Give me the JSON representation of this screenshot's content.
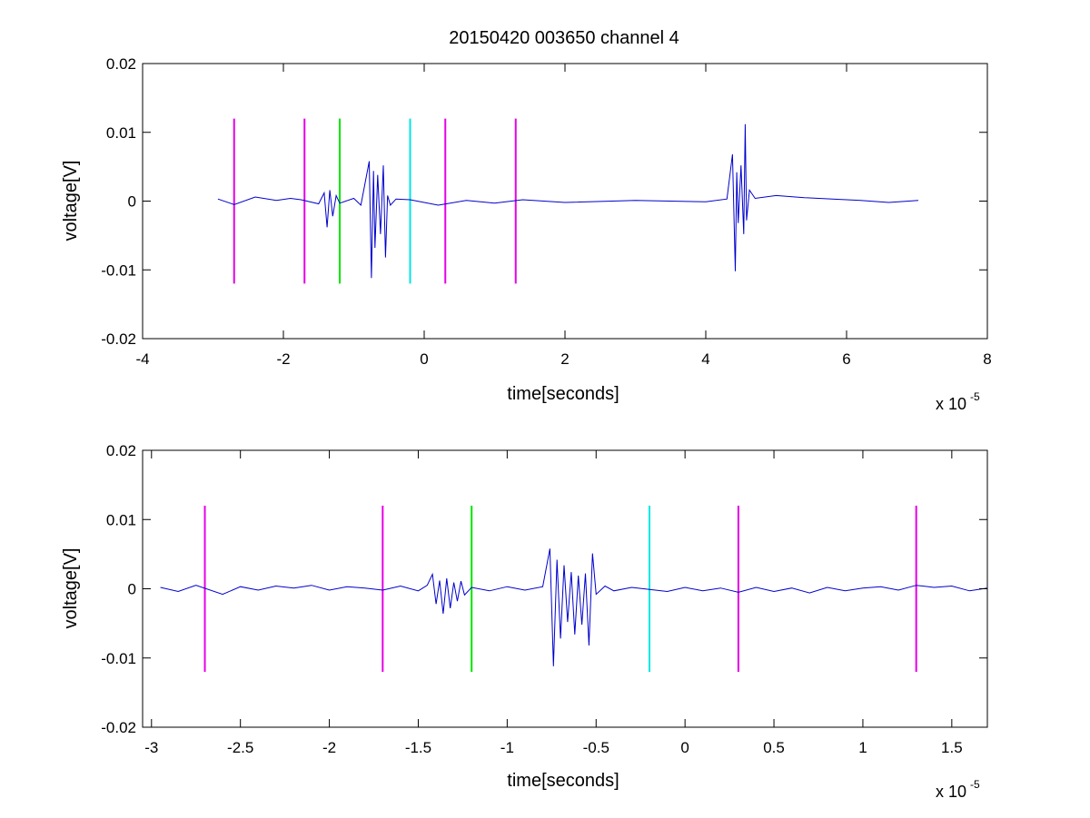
{
  "chart_data": [
    {
      "type": "line",
      "title": "20150420 003650 channel 4",
      "xlabel": "time[seconds]",
      "ylabel": "voltage[V]",
      "x_multiplier": "x 10",
      "x_exponent": "-5",
      "xlim": [
        -4,
        8
      ],
      "ylim": [
        -0.02,
        0.02
      ],
      "x_ticks": [
        -4,
        -2,
        0,
        2,
        4,
        6,
        8
      ],
      "x_tick_labels": [
        "-4",
        "-2",
        "0",
        "2",
        "4",
        "6",
        "8"
      ],
      "y_ticks": [
        0.02,
        0.01,
        0,
        -0.01,
        -0.02
      ],
      "y_tick_labels": [
        "0.02",
        "0.01",
        "0",
        "-0.01",
        "-0.02"
      ],
      "grid": false,
      "signal_color": "#0000cc",
      "series": [
        {
          "x": [
            -2.93,
            -2.7,
            -2.4,
            -2.1,
            -1.9,
            -1.75,
            -1.5,
            -1.42,
            -1.38,
            -1.34,
            -1.3,
            -1.25,
            -1.2,
            -1.0,
            -0.9,
            -0.78,
            -0.75,
            -0.72,
            -0.7,
            -0.66,
            -0.62,
            -0.58,
            -0.55,
            -0.52,
            -0.48,
            -0.4,
            -0.2,
            0.2,
            0.6,
            1.0,
            1.4,
            2.0,
            3.0,
            4.0,
            4.3,
            4.38,
            4.42,
            4.44,
            4.46,
            4.5,
            4.54,
            4.56,
            4.58,
            4.62,
            4.7,
            5.0,
            5.4,
            5.8,
            6.2,
            6.6,
            7.02
          ],
          "y": [
            0.0003,
            -0.0005,
            0.0006,
            0.0001,
            0.0004,
            0.0002,
            -0.0004,
            0.0012,
            -0.0038,
            0.0016,
            -0.0022,
            0.0008,
            -0.0003,
            0.0004,
            -0.0006,
            0.0058,
            -0.0112,
            0.0044,
            -0.0068,
            0.0038,
            -0.0048,
            0.0052,
            -0.0082,
            0.0008,
            -0.0006,
            0.0003,
            0.0002,
            -0.0006,
            0.0001,
            -0.0003,
            0.0002,
            -0.0002,
            0.0001,
            -0.0001,
            0.0003,
            0.0068,
            -0.0102,
            0.0042,
            -0.0032,
            0.0052,
            -0.0048,
            0.0112,
            -0.0028,
            0.0016,
            0.0004,
            0.0008,
            0.0005,
            0.0003,
            0.0001,
            -0.0002,
            0.0001
          ]
        }
      ],
      "markers": [
        {
          "x": -2.7,
          "color": "#e600e6"
        },
        {
          "x": -1.7,
          "color": "#e600e6"
        },
        {
          "x": -1.2,
          "color": "#00e600"
        },
        {
          "x": -0.2,
          "color": "#00e6e6"
        },
        {
          "x": 0.3,
          "color": "#e600e6"
        },
        {
          "x": 1.3,
          "color": "#e600e6"
        }
      ],
      "marker_range": [
        -0.012,
        0.012
      ]
    },
    {
      "type": "line",
      "title": "",
      "xlabel": "time[seconds]",
      "ylabel": "voltage[V]",
      "x_multiplier": "x 10",
      "x_exponent": "-5",
      "xlim": [
        -3.05,
        1.7
      ],
      "ylim": [
        -0.02,
        0.02
      ],
      "x_ticks": [
        -3,
        -2.5,
        -2,
        -1.5,
        -1,
        -0.5,
        0,
        0.5,
        1,
        1.5
      ],
      "x_tick_labels": [
        "-3",
        "-2.5",
        "-2",
        "-1.5",
        "-1",
        "-0.5",
        "0",
        "0.5",
        "1",
        "1.5"
      ],
      "y_ticks": [
        0.02,
        0.01,
        0,
        -0.01,
        -0.02
      ],
      "y_tick_labels": [
        "0.02",
        "0.01",
        "0",
        "-0.01",
        "-0.02"
      ],
      "grid": false,
      "signal_color": "#0000cc",
      "series": [
        {
          "x": [
            -2.95,
            -2.85,
            -2.75,
            -2.6,
            -2.5,
            -2.4,
            -2.3,
            -2.2,
            -2.1,
            -2.0,
            -1.9,
            -1.8,
            -1.7,
            -1.6,
            -1.5,
            -1.45,
            -1.42,
            -1.4,
            -1.38,
            -1.36,
            -1.34,
            -1.32,
            -1.3,
            -1.28,
            -1.26,
            -1.24,
            -1.2,
            -1.1,
            -1.0,
            -0.9,
            -0.8,
            -0.76,
            -0.74,
            -0.72,
            -0.7,
            -0.68,
            -0.66,
            -0.64,
            -0.62,
            -0.6,
            -0.58,
            -0.56,
            -0.54,
            -0.52,
            -0.5,
            -0.45,
            -0.4,
            -0.3,
            -0.2,
            -0.1,
            0.0,
            0.1,
            0.2,
            0.3,
            0.4,
            0.5,
            0.6,
            0.7,
            0.8,
            0.9,
            1.0,
            1.1,
            1.2,
            1.3,
            1.4,
            1.5,
            1.6,
            1.7
          ],
          "y": [
            0.0002,
            -0.0004,
            0.0005,
            -0.0008,
            0.0003,
            -0.0002,
            0.0004,
            0.0001,
            0.0005,
            -0.0002,
            0.0003,
            0.0001,
            -0.0002,
            0.0004,
            -0.0003,
            0.0005,
            0.0021,
            -0.0022,
            0.0012,
            -0.0036,
            0.0015,
            -0.0028,
            0.0009,
            -0.0018,
            0.0011,
            -0.0009,
            0.0002,
            -0.0003,
            0.0003,
            -0.0002,
            0.0003,
            0.0058,
            -0.0112,
            0.0042,
            -0.0072,
            0.0034,
            -0.0048,
            0.0024,
            -0.0066,
            0.0019,
            -0.0052,
            0.0022,
            -0.0082,
            0.0051,
            -0.0008,
            0.0004,
            -0.0003,
            0.0002,
            -0.0001,
            -0.0004,
            0.0002,
            -0.0003,
            0.0001,
            -0.0005,
            0.0002,
            -0.0004,
            0.0001,
            -0.0006,
            0.0002,
            -0.0003,
            0.0001,
            0.0003,
            -0.0002,
            0.0005,
            0.0002,
            0.0004,
            -0.0003,
            0.0001
          ]
        }
      ],
      "markers": [
        {
          "x": -2.7,
          "color": "#e600e6"
        },
        {
          "x": -1.7,
          "color": "#e600e6"
        },
        {
          "x": -1.2,
          "color": "#00e600"
        },
        {
          "x": -0.2,
          "color": "#00e6e6"
        },
        {
          "x": 0.3,
          "color": "#e600e6"
        },
        {
          "x": 1.3,
          "color": "#e600e6"
        }
      ],
      "marker_range": [
        -0.012,
        0.012
      ]
    }
  ]
}
